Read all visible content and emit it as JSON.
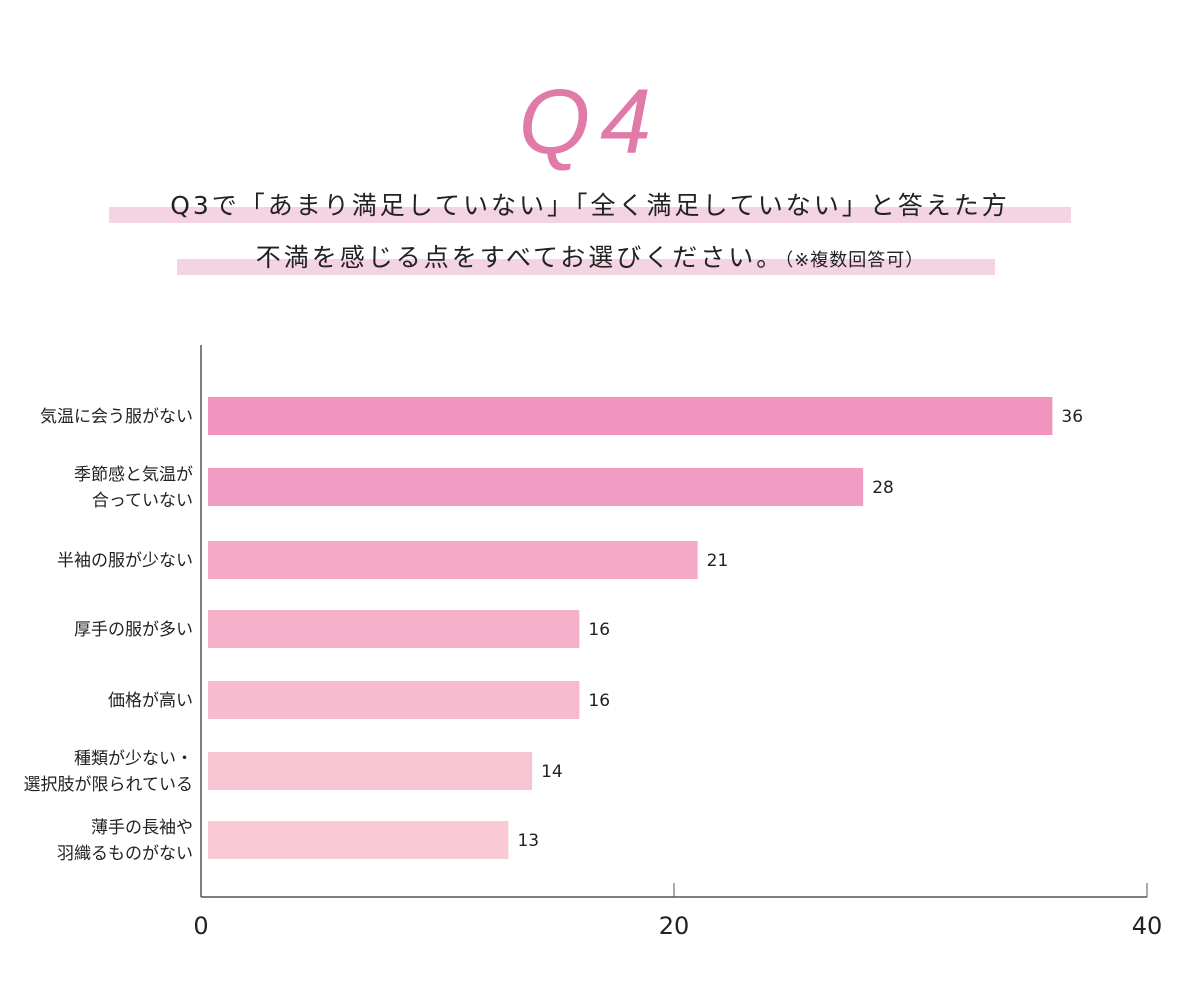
{
  "header": {
    "question_number": "Q4",
    "line1": "Q3で「あまり満足していない」「全く満足していない」と答えた方",
    "line2": "不満を感じる点をすべてお選びください。",
    "line2_note": "（※複数回答可）",
    "accent_color": "#e07aa8",
    "highlight_color": "#f4d3e2"
  },
  "chart_data": {
    "type": "bar",
    "orientation": "horizontal",
    "categories": [
      [
        "気温に会う服がない"
      ],
      [
        "季節感と気温が",
        "合っていない"
      ],
      [
        "半袖の服が少ない"
      ],
      [
        "厚手の服が多い"
      ],
      [
        "価格が高い"
      ],
      [
        "種類が少ない・",
        "選択肢が限られている"
      ],
      [
        "薄手の長袖や",
        "羽織るものがない"
      ]
    ],
    "values": [
      36,
      28,
      21,
      16,
      16,
      14,
      13
    ],
    "bar_colors": [
      "#f195bf",
      "#f29bc3",
      "#f4a9c7",
      "#f5b0ca",
      "#f7bace",
      "#f8c3d2",
      "#f9cad6"
    ],
    "xlim": [
      0,
      40
    ],
    "xticks": [
      "0",
      "20",
      "40"
    ],
    "grid": false,
    "title": "",
    "xlabel": "",
    "ylabel": ""
  }
}
